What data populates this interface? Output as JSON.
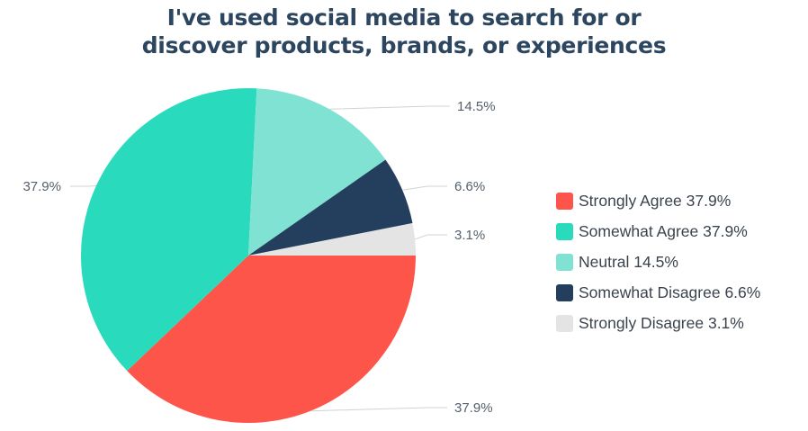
{
  "chart_data": {
    "type": "pie",
    "title": [
      "I've used social media to search for or",
      "discover products, brands, or experiences"
    ],
    "slices": [
      {
        "label": "Strongly Agree",
        "value": 37.9,
        "data_label": "37.9%",
        "legend": "Strongly Agree 37.9%",
        "color": "#fe554a"
      },
      {
        "label": "Somewhat Agree",
        "value": 37.9,
        "data_label": "37.9%",
        "legend": "Somewhat Agree 37.9%",
        "color": "#29dbbc"
      },
      {
        "label": "Neutral",
        "value": 14.5,
        "data_label": "14.5%",
        "legend": "Neutral 14.5%",
        "color": "#7fe2d3"
      },
      {
        "label": "Somewhat Disagree",
        "value": 6.6,
        "data_label": "6.6%",
        "legend": "Somewhat Disagree 6.6%",
        "color": "#243f5e"
      },
      {
        "label": "Strongly Disagree",
        "value": 3.1,
        "data_label": "3.1%",
        "legend": "Strongly Disagree 3.1%",
        "color": "#e4e4e4"
      }
    ],
    "start_angle": "3 o'clock, clockwise",
    "legend_position": "right"
  }
}
